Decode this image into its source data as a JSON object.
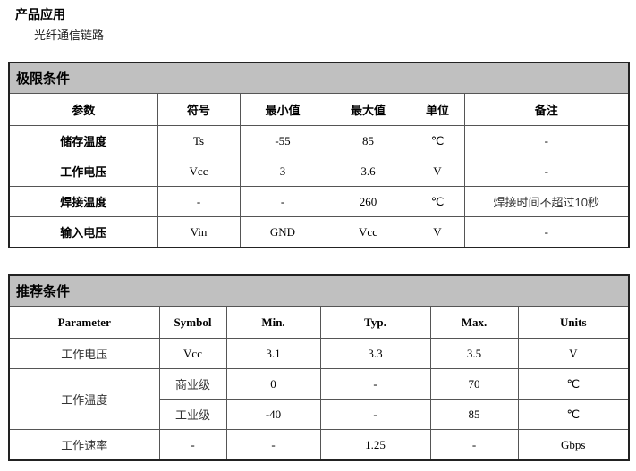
{
  "application": {
    "title": "产品应用",
    "item": "光纤通信链路"
  },
  "limits": {
    "title": "极限条件",
    "headers": [
      "参数",
      "符号",
      "最小值",
      "最大值",
      "单位",
      "备注"
    ],
    "rows": [
      [
        "储存温度",
        "Ts",
        "-55",
        "85",
        "℃",
        "-"
      ],
      [
        "工作电压",
        "Vcc",
        "3",
        "3.6",
        "V",
        "-"
      ],
      [
        "焊接温度",
        "-",
        "-",
        "260",
        "℃",
        "焊接时间不超过10秒"
      ],
      [
        "输入电压",
        "Vin",
        "GND",
        "Vcc",
        "V",
        "-"
      ]
    ]
  },
  "recommended": {
    "title": "推荐条件",
    "headers": [
      "Parameter",
      "Symbol",
      "Min.",
      "Typ.",
      "Max.",
      "Units"
    ],
    "voltage": [
      "工作电压",
      "Vcc",
      "3.1",
      "3.3",
      "3.5",
      "V"
    ],
    "temp_label": "工作温度",
    "temp_commercial": [
      "商业级",
      "0",
      "-",
      "70",
      "℃"
    ],
    "temp_industrial": [
      "工业级",
      "-40",
      "-",
      "85",
      "℃"
    ],
    "rate": [
      "工作速率",
      "-",
      "-",
      "1.25",
      "-",
      "Gbps"
    ]
  }
}
